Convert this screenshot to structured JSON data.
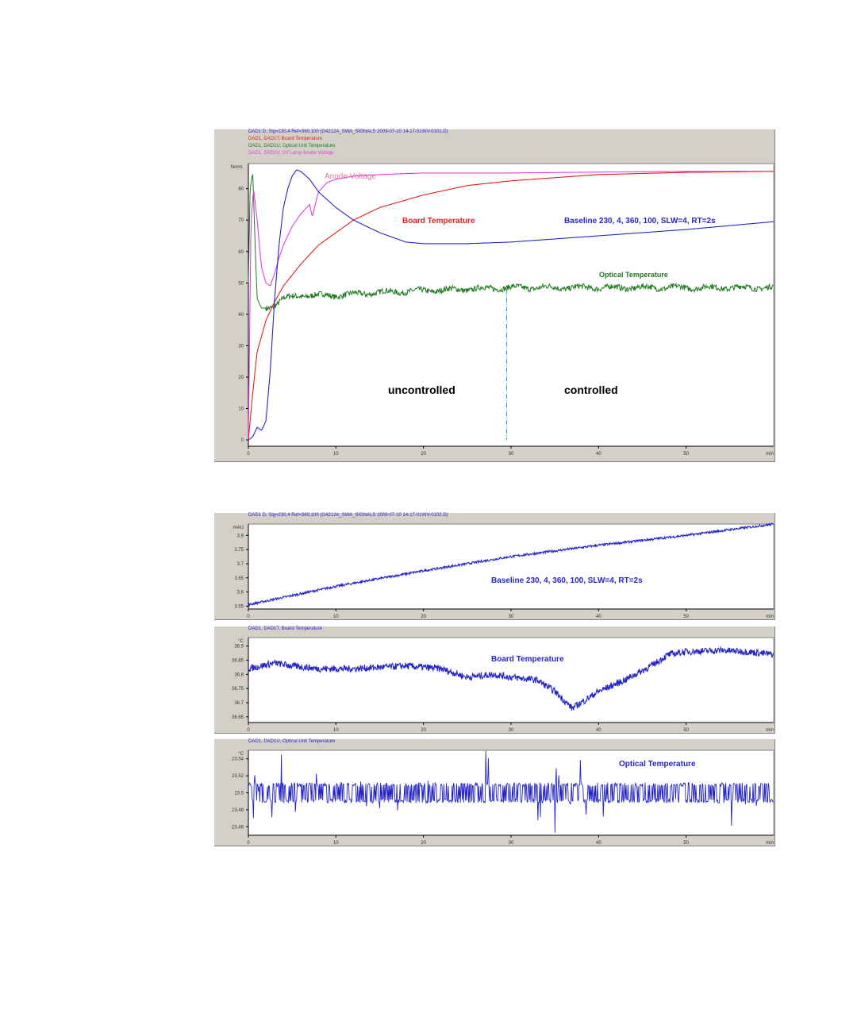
{
  "colors": {
    "blue": "#2525c8",
    "red": "#e0201c",
    "green": "#1f7a1f",
    "magenta": "#e040e0",
    "pink": "#e870a8",
    "panel": "#d4d0c8",
    "cyan": "#2aa0c8"
  },
  "top_panel": {
    "header_lines": [
      {
        "text": "DAD1 D, Sig=230,4 Ref=360,100 (G4212A_SWA_SIGNALS 2009-07-10 14-17-01\\NV-0101.D)",
        "color": "#2525c8"
      },
      {
        "text": "DAD1, DAD1T, Board Temperature",
        "color": "#e0201c"
      },
      {
        "text": "DAD1, DAD1U, Optical Unit Temperature",
        "color": "#1f7a1f"
      },
      {
        "text": "DAD1, DAD1V, UV Lamp Anode Voltage",
        "color": "#e040e0"
      }
    ],
    "annotations": {
      "anode": "Anode Voltage",
      "board": "Board Temperature",
      "baseline": "Baseline  230, 4, 360, 100, SLW=4, RT=2s",
      "optical": "Optical Temperature",
      "uncontrolled": "uncontrolled",
      "controlled": "controlled"
    }
  },
  "mid_panel": {
    "header": "DAD1 D, Sig=230,4 Ref=360,100 (G4212A_SWA_SIGNALS 2009-07-10 14-17-01\\NV-0102.D)",
    "annotation": "Baseline  230, 4, 360, 100, SLW=4, RT=2s"
  },
  "board_panel": {
    "header": "DAD1, DAD1T, Board Temperature",
    "annotation": "Board Temperature"
  },
  "optical_panel": {
    "header": "DAD1, DAD1U, Optical Unit Temperature",
    "annotation": "Optical Temperature"
  },
  "chart_data": [
    {
      "type": "line",
      "ylabel": "Norm.",
      "xlabel": "min",
      "xlim": [
        0,
        60
      ],
      "ylim": [
        -2,
        88
      ],
      "x_ticks": [
        0,
        10,
        20,
        30,
        40,
        50
      ],
      "y_ticks": [
        0,
        10,
        20,
        30,
        40,
        50,
        60,
        70,
        80
      ],
      "divider_x": 29.5,
      "series": [
        {
          "name": "Anode Voltage",
          "color": "#e040e0",
          "x": [
            0,
            0.3,
            0.6,
            1,
            1.5,
            2,
            2.5,
            3,
            3.5,
            4,
            5,
            6,
            7,
            7.3,
            8,
            9,
            10,
            12,
            15,
            20,
            30,
            40,
            50,
            60
          ],
          "y": [
            0,
            70,
            80,
            70,
            55,
            50,
            49,
            53,
            58,
            62,
            68,
            72,
            75,
            71,
            79,
            82,
            83,
            84,
            84.5,
            85,
            85,
            85.3,
            85.5,
            85.5
          ]
        },
        {
          "name": "Board Temperature",
          "color": "#e0201c",
          "x": [
            0,
            0.5,
            1,
            2,
            3,
            4,
            6,
            8,
            10,
            12,
            15,
            20,
            25,
            30,
            35,
            40,
            50,
            60
          ],
          "y": [
            0,
            15,
            28,
            38,
            44,
            49,
            56,
            62,
            66,
            70,
            74,
            78,
            81,
            82.5,
            83.5,
            84.5,
            85.2,
            85.5
          ]
        },
        {
          "name": "Baseline  230, 4, 360, 100, SLW=4, RT=2s",
          "color": "#2525c8",
          "x": [
            0,
            0.5,
            1,
            1.5,
            2,
            2.5,
            3,
            3.5,
            4,
            4.5,
            5,
            5.5,
            6,
            7,
            8,
            10,
            12,
            15,
            18,
            20,
            25,
            30,
            35,
            40,
            50,
            60
          ],
          "y": [
            0,
            1,
            4,
            3,
            6,
            22,
            45,
            62,
            74,
            80,
            84,
            86,
            85.5,
            83,
            79,
            74,
            70,
            66,
            63,
            62.5,
            62.5,
            63,
            64,
            65,
            67,
            69.5
          ]
        }
      ],
      "optical_series": {
        "name": "Optical Temperature",
        "color": "#1f7a1f",
        "x": [
          0,
          0.2,
          0.5,
          0.8,
          1,
          1.5,
          2,
          3,
          4,
          6,
          10,
          15,
          20,
          25,
          30,
          40,
          60
        ],
        "y": [
          50,
          80,
          85,
          60,
          45,
          42,
          42,
          43,
          45,
          46,
          46,
          47,
          47.5,
          48,
          48.5,
          48.5,
          48.5
        ],
        "noise": 0.9
      }
    },
    {
      "type": "line",
      "ylabel": "mAU",
      "xlabel": "min",
      "xlim": [
        0,
        60
      ],
      "ylim": [
        3.54,
        3.84
      ],
      "x_ticks": [
        0,
        10,
        20,
        30,
        40,
        50
      ],
      "y_ticks": [
        3.55,
        3.6,
        3.65,
        3.7,
        3.75,
        3.8
      ],
      "series": [
        {
          "name": "Baseline  230, 4, 360, 100, SLW=4, RT=2s",
          "color": "#2525c8",
          "x": [
            0,
            10,
            20,
            30,
            40,
            50,
            60
          ],
          "y": [
            3.555,
            3.62,
            3.675,
            3.725,
            3.765,
            3.8,
            3.84
          ],
          "noise": 0.004
        }
      ]
    },
    {
      "type": "line",
      "ylabel": "°C",
      "xlabel": "min",
      "xlim": [
        0,
        60
      ],
      "ylim": [
        36.63,
        36.93
      ],
      "x_ticks": [
        0,
        10,
        20,
        30,
        40,
        50
      ],
      "y_ticks": [
        36.65,
        36.7,
        36.75,
        36.8,
        36.85,
        36.9
      ],
      "y_tick_labels": [
        "36.65",
        "36.7",
        "36.75",
        "36.8",
        "36.85",
        "36.9"
      ],
      "series": [
        {
          "name": "Board Temperature",
          "color": "#2525c8",
          "x": [
            0,
            3,
            5,
            8,
            12,
            15,
            18,
            22,
            25,
            28,
            30,
            33,
            35,
            37,
            38,
            40,
            43,
            46,
            48,
            50,
            54,
            57,
            60
          ],
          "y": [
            36.82,
            36.84,
            36.83,
            36.82,
            36.82,
            36.825,
            36.83,
            36.82,
            36.79,
            36.8,
            36.79,
            36.78,
            36.74,
            36.68,
            36.7,
            36.74,
            36.78,
            36.83,
            36.87,
            36.88,
            36.885,
            36.88,
            36.87
          ],
          "noise": 0.012
        }
      ]
    },
    {
      "type": "line",
      "ylabel": "°C",
      "xlabel": "min",
      "xlim": [
        0,
        60
      ],
      "ylim": [
        23.45,
        23.55
      ],
      "x_ticks": [
        0,
        10,
        20,
        30,
        40,
        50
      ],
      "y_ticks": [
        23.46,
        23.48,
        23.5,
        23.52,
        23.54
      ],
      "series": [
        {
          "name": "Optical Temperature",
          "color": "#2525c8",
          "x": [
            0,
            60
          ],
          "y": [
            23.5,
            23.5
          ],
          "noise": 0.012,
          "spike": 0.04
        }
      ]
    }
  ]
}
